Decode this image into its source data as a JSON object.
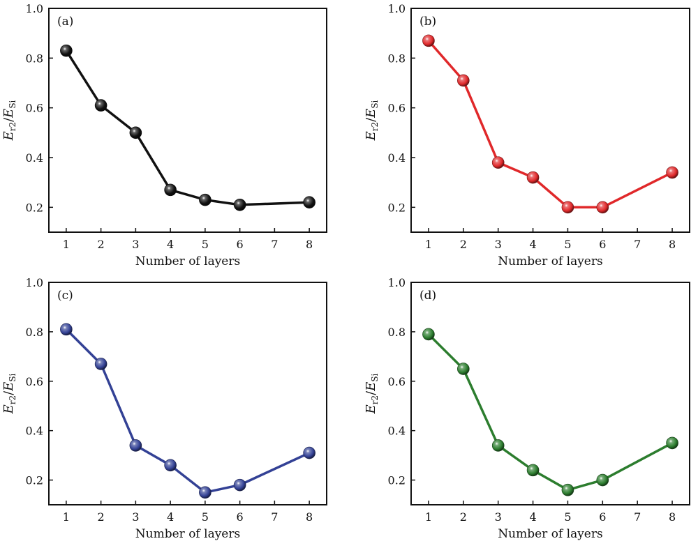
{
  "figure": {
    "ylabel": {
      "main": "E",
      "sub1": "r2",
      "slash": "/",
      "main2": "E",
      "sub2": "Si"
    }
  },
  "chart_data": [
    {
      "type": "line",
      "panel": "(a)",
      "xlabel": "Number of layers",
      "x_ticks": [
        "1",
        "2",
        "3",
        "4",
        "5",
        "6",
        "7",
        "8"
      ],
      "x_categories": [
        1,
        2,
        3,
        4,
        5,
        6,
        8
      ],
      "values": [
        0.83,
        0.61,
        0.5,
        0.27,
        0.23,
        0.21,
        0.22
      ],
      "ylim": [
        0.1,
        1.0
      ],
      "y_ticks": [
        "0.2",
        "0.4",
        "0.6",
        "0.8",
        "1.0"
      ],
      "color": "#111111"
    },
    {
      "type": "line",
      "panel": "(b)",
      "xlabel": "Number of layers",
      "x_ticks": [
        "1",
        "2",
        "3",
        "4",
        "5",
        "6",
        "7",
        "8"
      ],
      "x_categories": [
        1,
        2,
        3,
        4,
        5,
        6,
        8
      ],
      "values": [
        0.87,
        0.71,
        0.38,
        0.32,
        0.2,
        0.2,
        0.34
      ],
      "ylim": [
        0.1,
        1.0
      ],
      "y_ticks": [
        "0.2",
        "0.4",
        "0.6",
        "0.8",
        "1.0"
      ],
      "color": "#e0282a"
    },
    {
      "type": "line",
      "panel": "(c)",
      "xlabel": "Number of layers",
      "x_ticks": [
        "1",
        "2",
        "3",
        "4",
        "5",
        "6",
        "7",
        "8"
      ],
      "x_categories": [
        1,
        2,
        3,
        4,
        5,
        6,
        8
      ],
      "values": [
        0.81,
        0.67,
        0.34,
        0.26,
        0.15,
        0.18,
        0.31
      ],
      "ylim": [
        0.1,
        1.0
      ],
      "y_ticks": [
        "0.2",
        "0.4",
        "0.6",
        "0.8",
        "1.0"
      ],
      "color": "#334195"
    },
    {
      "type": "line",
      "panel": "(d)",
      "xlabel": "Number of layers",
      "x_ticks": [
        "1",
        "2",
        "3",
        "4",
        "5",
        "6",
        "7",
        "8"
      ],
      "x_categories": [
        1,
        2,
        3,
        4,
        5,
        6,
        8
      ],
      "values": [
        0.79,
        0.65,
        0.34,
        0.24,
        0.16,
        0.2,
        0.35
      ],
      "ylim": [
        0.1,
        1.0
      ],
      "y_ticks": [
        "0.2",
        "0.4",
        "0.6",
        "0.8",
        "1.0"
      ],
      "color": "#2c7d2e"
    }
  ]
}
